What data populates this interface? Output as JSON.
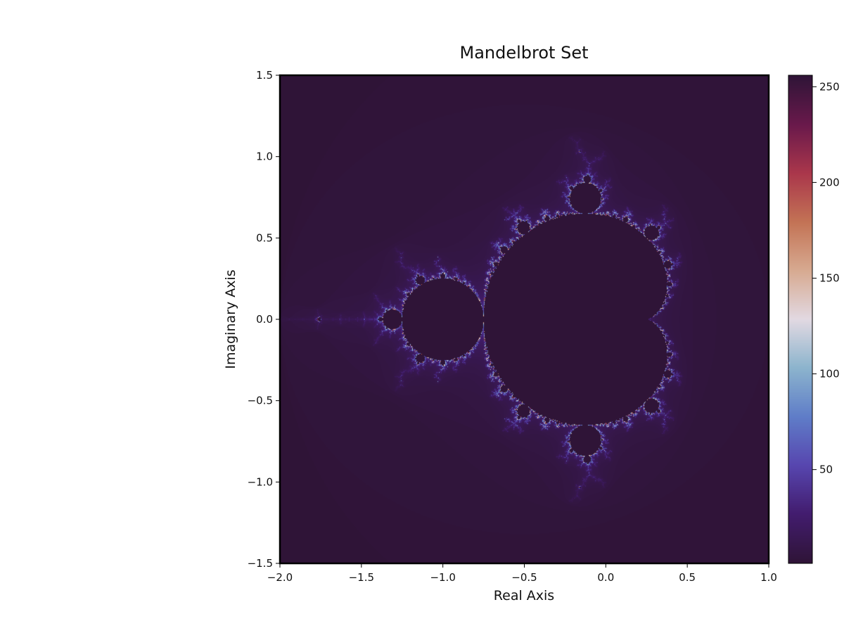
{
  "chart_data": {
    "type": "heatmap",
    "title": "Mandelbrot Set",
    "xlabel": "Real Axis",
    "ylabel": "Imaginary Axis",
    "xlim": [
      -2.0,
      1.0
    ],
    "ylim": [
      -1.5,
      1.5
    ],
    "x_ticks": [
      {
        "value": -2.0,
        "label": "−2.0"
      },
      {
        "value": -1.5,
        "label": "−1.5"
      },
      {
        "value": -1.0,
        "label": "−1.0"
      },
      {
        "value": -0.5,
        "label": "−0.5"
      },
      {
        "value": 0.0,
        "label": "0.0"
      },
      {
        "value": 0.5,
        "label": "0.5"
      },
      {
        "value": 1.0,
        "label": "1.0"
      }
    ],
    "y_ticks": [
      {
        "value": 1.5,
        "label": "1.5"
      },
      {
        "value": 1.0,
        "label": "1.0"
      },
      {
        "value": 0.5,
        "label": "0.5"
      },
      {
        "value": 0.0,
        "label": "0.0"
      },
      {
        "value": -0.5,
        "label": "−0.5"
      },
      {
        "value": -1.0,
        "label": "−1.0"
      },
      {
        "value": -1.5,
        "label": "−1.5"
      }
    ],
    "max_iterations": 256,
    "colormap": "twilight_shifted",
    "colorbar": {
      "range": [
        1,
        256
      ],
      "ticks": [
        {
          "value": 50,
          "label": "50"
        },
        {
          "value": 100,
          "label": "100"
        },
        {
          "value": 150,
          "label": "150"
        },
        {
          "value": 200,
          "label": "200"
        },
        {
          "value": 250,
          "label": "250"
        }
      ]
    },
    "grid": false
  }
}
